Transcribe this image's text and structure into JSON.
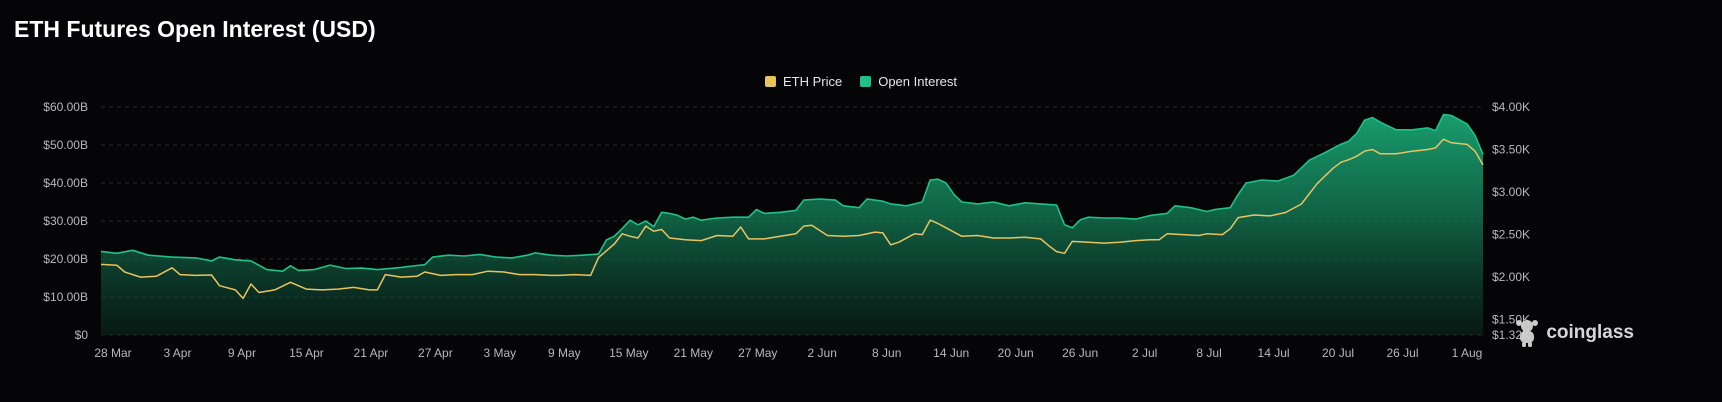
{
  "page": {
    "title": "ETH Futures Open Interest (USD)"
  },
  "brand": {
    "name": "coinglass",
    "logo_icon": "coinglass-logo-icon"
  },
  "colors": {
    "price": "#e8c460",
    "oi": "#1ec287",
    "background": "#050507"
  },
  "chart_data": {
    "type": "area",
    "title": "ETH Futures Open Interest (USD)",
    "legend": {
      "placement": "top-center",
      "entries": [
        "ETH Price",
        "Open Interest"
      ]
    },
    "grid": true,
    "x_ticks": [
      "28 Mar",
      "3 Apr",
      "9 Apr",
      "15 Apr",
      "21 Apr",
      "27 Apr",
      "3 May",
      "9 May",
      "15 May",
      "21 May",
      "27 May",
      "2 Jun",
      "8 Jun",
      "14 Jun",
      "20 Jun",
      "26 Jun",
      "2 Jul",
      "8 Jul",
      "14 Jul",
      "20 Jul",
      "26 Jul",
      "1 Aug"
    ],
    "y_left": {
      "ticks": [
        "$0",
        "$10.00B",
        "$20.00B",
        "$30.00B",
        "$40.00B",
        "$50.00B",
        "$60.00B"
      ],
      "values": [
        0,
        10,
        20,
        30,
        40,
        50,
        60
      ],
      "range": [
        0,
        60
      ]
    },
    "y_right": {
      "ticks": [
        "$1.32K",
        "$1.50K",
        "$2.00K",
        "$2.50K",
        "$3.00K",
        "$3.50K",
        "$4.00K"
      ],
      "values": [
        1320,
        1500,
        2000,
        2500,
        3000,
        3500,
        4000
      ],
      "range": [
        1320,
        4000
      ]
    },
    "series": [
      {
        "name": "Open Interest",
        "axis": "left",
        "kind": "area",
        "points": [
          [
            0,
            22
          ],
          [
            2,
            21.5
          ],
          [
            4,
            22.3
          ],
          [
            6,
            21
          ],
          [
            9,
            20.5
          ],
          [
            12,
            20.3
          ],
          [
            14,
            19.5
          ],
          [
            15,
            20.5
          ],
          [
            17,
            19.8
          ],
          [
            19,
            19.5
          ],
          [
            21,
            17.2
          ],
          [
            23,
            16.8
          ],
          [
            24,
            18.2
          ],
          [
            25,
            17
          ],
          [
            27,
            17.2
          ],
          [
            29,
            18.4
          ],
          [
            31,
            17.5
          ],
          [
            33,
            17.6
          ],
          [
            35,
            17.2
          ],
          [
            38,
            17.8
          ],
          [
            40,
            18.3
          ],
          [
            41,
            18.5
          ],
          [
            42,
            20.5
          ],
          [
            44,
            21
          ],
          [
            46,
            20.8
          ],
          [
            48,
            21.2
          ],
          [
            50,
            20.5
          ],
          [
            52,
            20.3
          ],
          [
            54,
            21
          ],
          [
            55,
            21.6
          ],
          [
            57,
            21
          ],
          [
            59,
            20.8
          ],
          [
            61,
            21
          ],
          [
            63,
            21.3
          ],
          [
            64,
            25
          ],
          [
            65,
            26
          ],
          [
            66,
            28
          ],
          [
            67,
            30.2
          ],
          [
            68,
            29
          ],
          [
            69,
            30
          ],
          [
            70,
            28.5
          ],
          [
            71,
            32.3
          ],
          [
            72,
            32
          ],
          [
            73,
            31.5
          ],
          [
            74,
            30.5
          ],
          [
            75,
            31
          ],
          [
            76,
            30.2
          ],
          [
            78,
            30.8
          ],
          [
            80,
            31
          ],
          [
            82,
            31
          ],
          [
            83,
            33
          ],
          [
            84,
            32
          ],
          [
            86,
            32.3
          ],
          [
            88,
            32.8
          ],
          [
            89,
            35.5
          ],
          [
            91,
            35.8
          ],
          [
            93,
            35.5
          ],
          [
            94,
            34
          ],
          [
            96,
            33.5
          ],
          [
            97,
            35.8
          ],
          [
            99,
            35.2
          ],
          [
            100,
            34.5
          ],
          [
            102,
            34
          ],
          [
            104,
            35
          ],
          [
            105,
            40.8
          ],
          [
            106,
            41
          ],
          [
            107,
            40
          ],
          [
            108,
            37
          ],
          [
            109,
            35
          ],
          [
            111,
            34.5
          ],
          [
            113,
            35
          ],
          [
            115,
            34
          ],
          [
            117,
            34.8
          ],
          [
            119,
            34.5
          ],
          [
            121,
            34.2
          ],
          [
            122,
            29
          ],
          [
            123,
            28.2
          ],
          [
            124,
            30.3
          ],
          [
            125,
            31
          ],
          [
            127,
            30.8
          ],
          [
            129,
            30.8
          ],
          [
            131,
            30.5
          ],
          [
            133,
            31.5
          ],
          [
            135,
            32
          ],
          [
            136,
            34
          ],
          [
            138,
            33.5
          ],
          [
            140,
            32.5
          ],
          [
            141,
            33
          ],
          [
            143,
            33.5
          ],
          [
            144,
            37
          ],
          [
            145,
            40
          ],
          [
            147,
            40.8
          ],
          [
            149,
            40.5
          ],
          [
            151,
            42
          ],
          [
            153,
            46
          ],
          [
            155,
            48
          ],
          [
            157,
            50.2
          ],
          [
            158,
            51
          ],
          [
            159,
            53
          ],
          [
            160,
            56.5
          ],
          [
            161,
            57.2
          ],
          [
            162,
            56
          ],
          [
            164,
            54
          ],
          [
            166,
            54
          ],
          [
            168,
            54.5
          ],
          [
            169,
            53.8
          ],
          [
            170,
            58
          ],
          [
            171,
            57.8
          ],
          [
            173,
            55.5
          ],
          [
            174,
            52.5
          ],
          [
            175,
            47.5
          ]
        ]
      },
      {
        "name": "ETH Price",
        "axis": "right",
        "kind": "line",
        "points": [
          [
            0,
            2150
          ],
          [
            2,
            2140
          ],
          [
            3,
            2060
          ],
          [
            5,
            2000
          ],
          [
            7,
            2010
          ],
          [
            9,
            2110
          ],
          [
            10,
            2030
          ],
          [
            12,
            2020
          ],
          [
            14,
            2025
          ],
          [
            15,
            1900
          ],
          [
            17,
            1850
          ],
          [
            18,
            1750
          ],
          [
            19,
            1920
          ],
          [
            20,
            1820
          ],
          [
            22,
            1850
          ],
          [
            24,
            1940
          ],
          [
            26,
            1860
          ],
          [
            28,
            1850
          ],
          [
            30,
            1860
          ],
          [
            32,
            1880
          ],
          [
            34,
            1850
          ],
          [
            35,
            1850
          ],
          [
            36,
            2030
          ],
          [
            38,
            2000
          ],
          [
            40,
            2010
          ],
          [
            41,
            2060
          ],
          [
            43,
            2020
          ],
          [
            45,
            2030
          ],
          [
            47,
            2030
          ],
          [
            49,
            2070
          ],
          [
            51,
            2060
          ],
          [
            53,
            2030
          ],
          [
            55,
            2030
          ],
          [
            57,
            2020
          ],
          [
            58,
            2020
          ],
          [
            60,
            2030
          ],
          [
            62,
            2020
          ],
          [
            63,
            2230
          ],
          [
            64,
            2310
          ],
          [
            65,
            2390
          ],
          [
            66,
            2510
          ],
          [
            67,
            2480
          ],
          [
            68,
            2460
          ],
          [
            69,
            2600
          ],
          [
            70,
            2540
          ],
          [
            71,
            2560
          ],
          [
            72,
            2460
          ],
          [
            74,
            2440
          ],
          [
            76,
            2430
          ],
          [
            78,
            2490
          ],
          [
            80,
            2480
          ],
          [
            81,
            2590
          ],
          [
            82,
            2450
          ],
          [
            84,
            2450
          ],
          [
            86,
            2480
          ],
          [
            88,
            2510
          ],
          [
            89,
            2600
          ],
          [
            90,
            2610
          ],
          [
            92,
            2490
          ],
          [
            94,
            2480
          ],
          [
            96,
            2490
          ],
          [
            98,
            2530
          ],
          [
            99,
            2520
          ],
          [
            100,
            2380
          ],
          [
            101,
            2410
          ],
          [
            103,
            2510
          ],
          [
            104,
            2500
          ],
          [
            105,
            2670
          ],
          [
            106,
            2630
          ],
          [
            107,
            2580
          ],
          [
            109,
            2480
          ],
          [
            111,
            2490
          ],
          [
            113,
            2460
          ],
          [
            115,
            2460
          ],
          [
            117,
            2470
          ],
          [
            119,
            2450
          ],
          [
            120,
            2370
          ],
          [
            121,
            2300
          ],
          [
            122,
            2280
          ],
          [
            123,
            2420
          ],
          [
            125,
            2410
          ],
          [
            127,
            2400
          ],
          [
            129,
            2410
          ],
          [
            131,
            2430
          ],
          [
            133,
            2440
          ],
          [
            134,
            2440
          ],
          [
            135,
            2510
          ],
          [
            137,
            2500
          ],
          [
            139,
            2490
          ],
          [
            140,
            2510
          ],
          [
            142,
            2500
          ],
          [
            143,
            2570
          ],
          [
            144,
            2700
          ],
          [
            146,
            2730
          ],
          [
            148,
            2720
          ],
          [
            150,
            2760
          ],
          [
            152,
            2860
          ],
          [
            154,
            3100
          ],
          [
            156,
            3280
          ],
          [
            157,
            3350
          ],
          [
            158,
            3380
          ],
          [
            159,
            3420
          ],
          [
            160,
            3480
          ],
          [
            161,
            3500
          ],
          [
            162,
            3450
          ],
          [
            164,
            3450
          ],
          [
            166,
            3480
          ],
          [
            168,
            3500
          ],
          [
            169,
            3520
          ],
          [
            170,
            3620
          ],
          [
            171,
            3580
          ],
          [
            173,
            3560
          ],
          [
            174,
            3480
          ],
          [
            175,
            3320
          ]
        ]
      }
    ]
  }
}
